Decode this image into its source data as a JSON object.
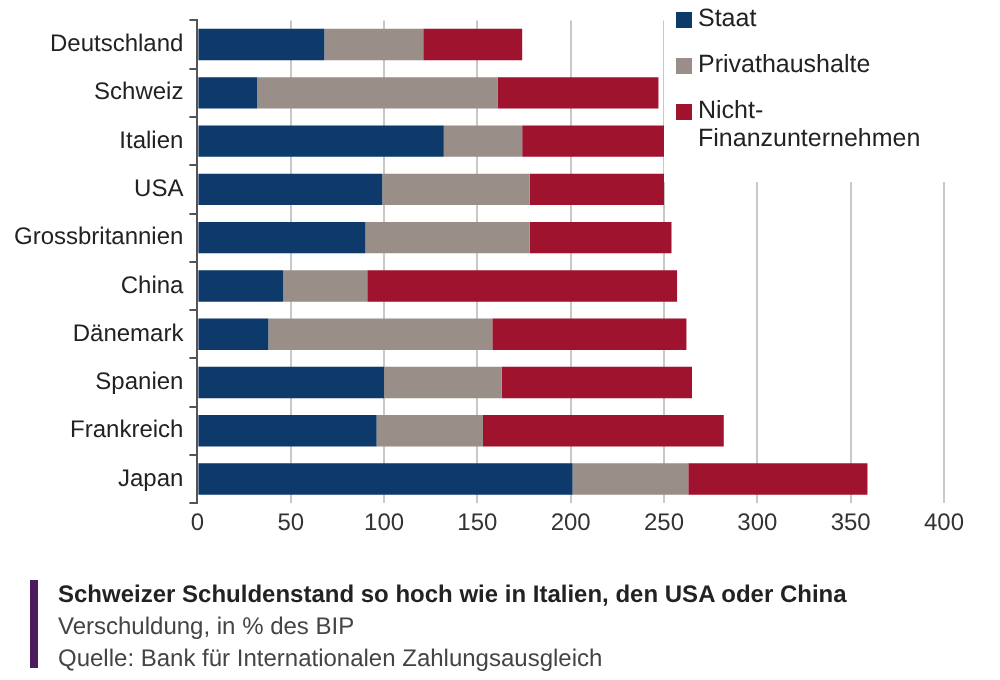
{
  "chart_data": {
    "type": "bar",
    "orientation": "horizontal",
    "stacked": true,
    "title": "Schweizer Schuldenstand so hoch wie in Italien, den USA oder China",
    "subtitle": "Verschuldung, in % des BIP",
    "annotations": [
      "Quelle: Bank für Internationalen Zahlungsausgleich"
    ],
    "categories": [
      "Deutschland",
      "Schweiz",
      "Italien",
      "USA",
      "Grossbritannien",
      "China",
      "Dänemark",
      "Spanien",
      "Frankreich",
      "Japan"
    ],
    "series": [
      {
        "name": "Staat",
        "color": "#0d3a6b",
        "values": [
          68,
          32,
          132,
          99,
          90,
          46,
          38,
          100,
          96,
          201
        ]
      },
      {
        "name": "Privathaushalte",
        "color": "#9a8f88",
        "values": [
          53,
          129,
          42,
          79,
          88,
          45,
          120,
          63,
          57,
          62
        ]
      },
      {
        "name": "Nicht-Finanzunternehmen",
        "color": "#a0132f",
        "values": [
          53,
          86,
          76,
          72,
          76,
          166,
          104,
          102,
          129,
          96
        ]
      }
    ],
    "xlim": [
      0,
      400
    ],
    "xticks": [
      0,
      50,
      100,
      150,
      200,
      250,
      300,
      350,
      400
    ],
    "grid": "x",
    "legend": "top right"
  }
}
